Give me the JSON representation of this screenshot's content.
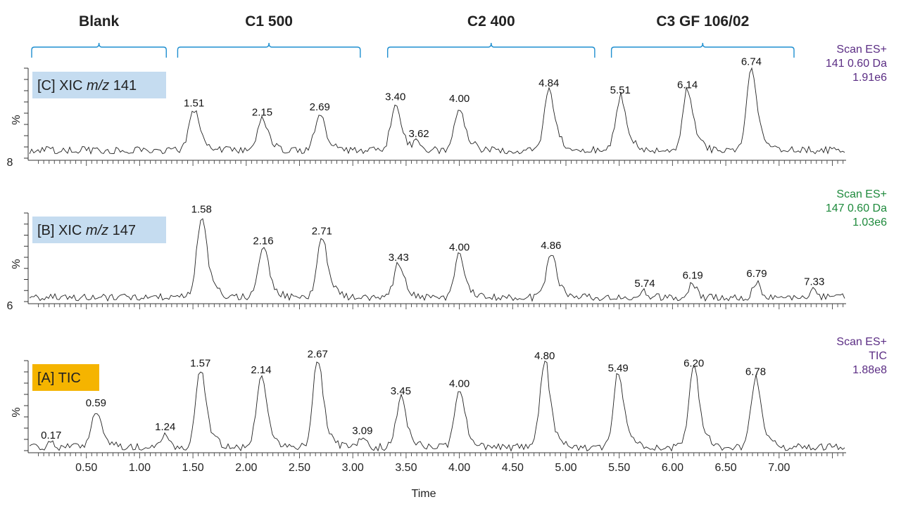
{
  "chart_data": {
    "type": "line",
    "xlabel": "Time",
    "xlim": [
      0,
      7.62
    ],
    "x_ticks": [
      "0.50",
      "1.00",
      "1.50",
      "2.00",
      "2.50",
      "3.00",
      "3.50",
      "4.00",
      "4.50",
      "5.00",
      "5.50",
      "6.00",
      "6.50",
      "7.00"
    ],
    "groups": [
      {
        "label": "Blank",
        "range": [
          0.0,
          1.25
        ]
      },
      {
        "label": "C1 500",
        "range": [
          1.37,
          3.07
        ]
      },
      {
        "label": "C2 400",
        "range": [
          3.34,
          5.27
        ]
      },
      {
        "label": "C3 GF 106/02",
        "range": [
          5.44,
          7.14
        ]
      }
    ],
    "panels": [
      {
        "id": "C",
        "label_prefix": "[C] XIC ",
        "label_italic": "m/z",
        "label_suffix": " 141",
        "label_bg": "#c5dcf0",
        "ylabel": "%",
        "ymin_label": "8",
        "info": [
          "Scan ES+",
          "141 0.60 Da",
          "1.91e6"
        ],
        "info_color": "#5b2d84",
        "baseline": 11,
        "peaks": [
          {
            "t": 1.51,
            "label": "1.51",
            "y": 53
          },
          {
            "t": 2.15,
            "label": "2.15",
            "y": 43
          },
          {
            "t": 2.69,
            "label": "2.69",
            "y": 49
          },
          {
            "t": 3.4,
            "label": "3.40",
            "y": 60
          },
          {
            "t": 3.62,
            "label": "3.62",
            "y": 20
          },
          {
            "t": 4.0,
            "label": "4.00",
            "y": 58
          },
          {
            "t": 4.84,
            "label": "4.84",
            "y": 75
          },
          {
            "t": 5.51,
            "label": "5.51",
            "y": 67
          },
          {
            "t": 6.14,
            "label": "6.14",
            "y": 73
          },
          {
            "t": 6.74,
            "label": "6.74",
            "y": 98
          }
        ]
      },
      {
        "id": "B",
        "label_prefix": "[B] XIC ",
        "label_italic": "m/z",
        "label_suffix": " 147",
        "label_bg": "#c5dcf0",
        "ylabel": "%",
        "ymin_label": "6",
        "info": [
          "Scan ES+",
          "147 0.60 Da",
          "1.03e6"
        ],
        "info_color": "#1e8a3c",
        "baseline": 7,
        "peaks": [
          {
            "t": 1.58,
            "label": "1.58",
            "y": 95
          },
          {
            "t": 2.16,
            "label": "2.16",
            "y": 60
          },
          {
            "t": 2.71,
            "label": "2.71",
            "y": 71
          },
          {
            "t": 3.43,
            "label": "3.43",
            "y": 42
          },
          {
            "t": 4.0,
            "label": "4.00",
            "y": 53
          },
          {
            "t": 4.86,
            "label": "4.86",
            "y": 55
          },
          {
            "t": 5.74,
            "label": "5.74",
            "y": 13
          },
          {
            "t": 6.19,
            "label": "6.19",
            "y": 22
          },
          {
            "t": 6.79,
            "label": "6.79",
            "y": 24
          },
          {
            "t": 7.33,
            "label": "7.33",
            "y": 15
          }
        ]
      },
      {
        "id": "A",
        "label_prefix": "[A] TIC",
        "label_italic": "",
        "label_suffix": "",
        "label_bg": "#f5b400",
        "ylabel": "%",
        "ymin_label": "",
        "info": [
          "Scan ES+",
          "TIC",
          "1.88e8"
        ],
        "info_color": "#5b2d84",
        "baseline": 6,
        "peaks": [
          {
            "t": 0.17,
            "label": "0.17",
            "y": 10
          },
          {
            "t": 0.59,
            "label": "0.59",
            "y": 45
          },
          {
            "t": 1.24,
            "label": "1.24",
            "y": 19
          },
          {
            "t": 1.57,
            "label": "1.57",
            "y": 88
          },
          {
            "t": 2.14,
            "label": "2.14",
            "y": 81
          },
          {
            "t": 2.67,
            "label": "2.67",
            "y": 98
          },
          {
            "t": 3.09,
            "label": "3.09",
            "y": 15
          },
          {
            "t": 3.45,
            "label": "3.45",
            "y": 58
          },
          {
            "t": 4.0,
            "label": "4.00",
            "y": 66
          },
          {
            "t": 4.8,
            "label": "4.80",
            "y": 96
          },
          {
            "t": 5.49,
            "label": "5.49",
            "y": 83
          },
          {
            "t": 6.2,
            "label": "6.20",
            "y": 88
          },
          {
            "t": 6.78,
            "label": "6.78",
            "y": 79
          }
        ]
      }
    ],
    "bracket_color": "#1f8fd0"
  }
}
